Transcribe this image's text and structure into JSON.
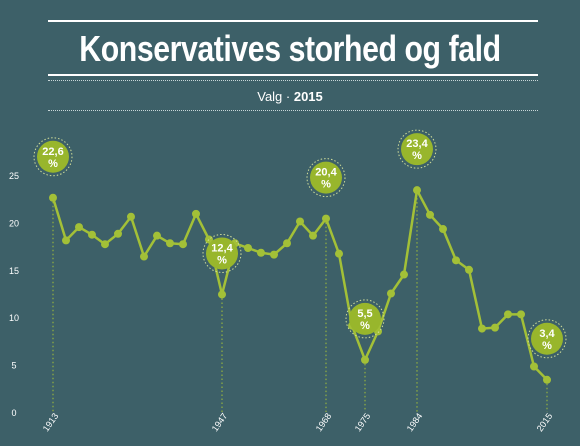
{
  "header": {
    "title": "Konservatives storhed og fald",
    "subtitle_prefix": "Valg · ",
    "subtitle_year": "2015"
  },
  "colors": {
    "background": "#3d6068",
    "line": "#a3c037",
    "bubble": "#98b62c",
    "text": "#ffffff"
  },
  "chart_data": {
    "type": "line",
    "title": "Konservatives storhed og fald",
    "subtitle": "Valg · 2015",
    "xlabel": "",
    "ylabel": "",
    "ylim": [
      0,
      25
    ],
    "yticks": [
      0,
      5,
      10,
      15,
      20,
      25
    ],
    "grid": false,
    "series": [
      {
        "values": [
          22.6,
          18.1,
          19.5,
          18.7,
          17.7,
          18.8,
          20.6,
          16.4,
          18.6,
          17.8,
          17.7,
          20.9,
          18.2,
          12.4,
          17.8,
          17.3,
          16.8,
          16.6,
          17.8,
          20.1,
          18.6,
          20.4,
          16.7,
          9.1,
          5.5,
          8.5,
          12.5,
          14.5,
          23.4,
          20.8,
          19.3,
          16.0,
          15.0,
          8.8,
          8.9,
          10.3,
          10.3,
          4.8,
          3.4
        ]
      }
    ],
    "x_tick_labels": [
      {
        "index": 0,
        "label": "1913"
      },
      {
        "index": 13,
        "label": "1947"
      },
      {
        "index": 21,
        "label": "1968"
      },
      {
        "index": 24,
        "label": "1975"
      },
      {
        "index": 28,
        "label": "1984"
      },
      {
        "index": 38,
        "label": "2015"
      }
    ],
    "annotations": [
      {
        "index": 0,
        "label": "22,6 %"
      },
      {
        "index": 13,
        "label": "12,4 %"
      },
      {
        "index": 21,
        "label": "20,4 %"
      },
      {
        "index": 24,
        "label": "5,5 %"
      },
      {
        "index": 28,
        "label": "23,4 %"
      },
      {
        "index": 38,
        "label": "3,4 %"
      }
    ]
  }
}
